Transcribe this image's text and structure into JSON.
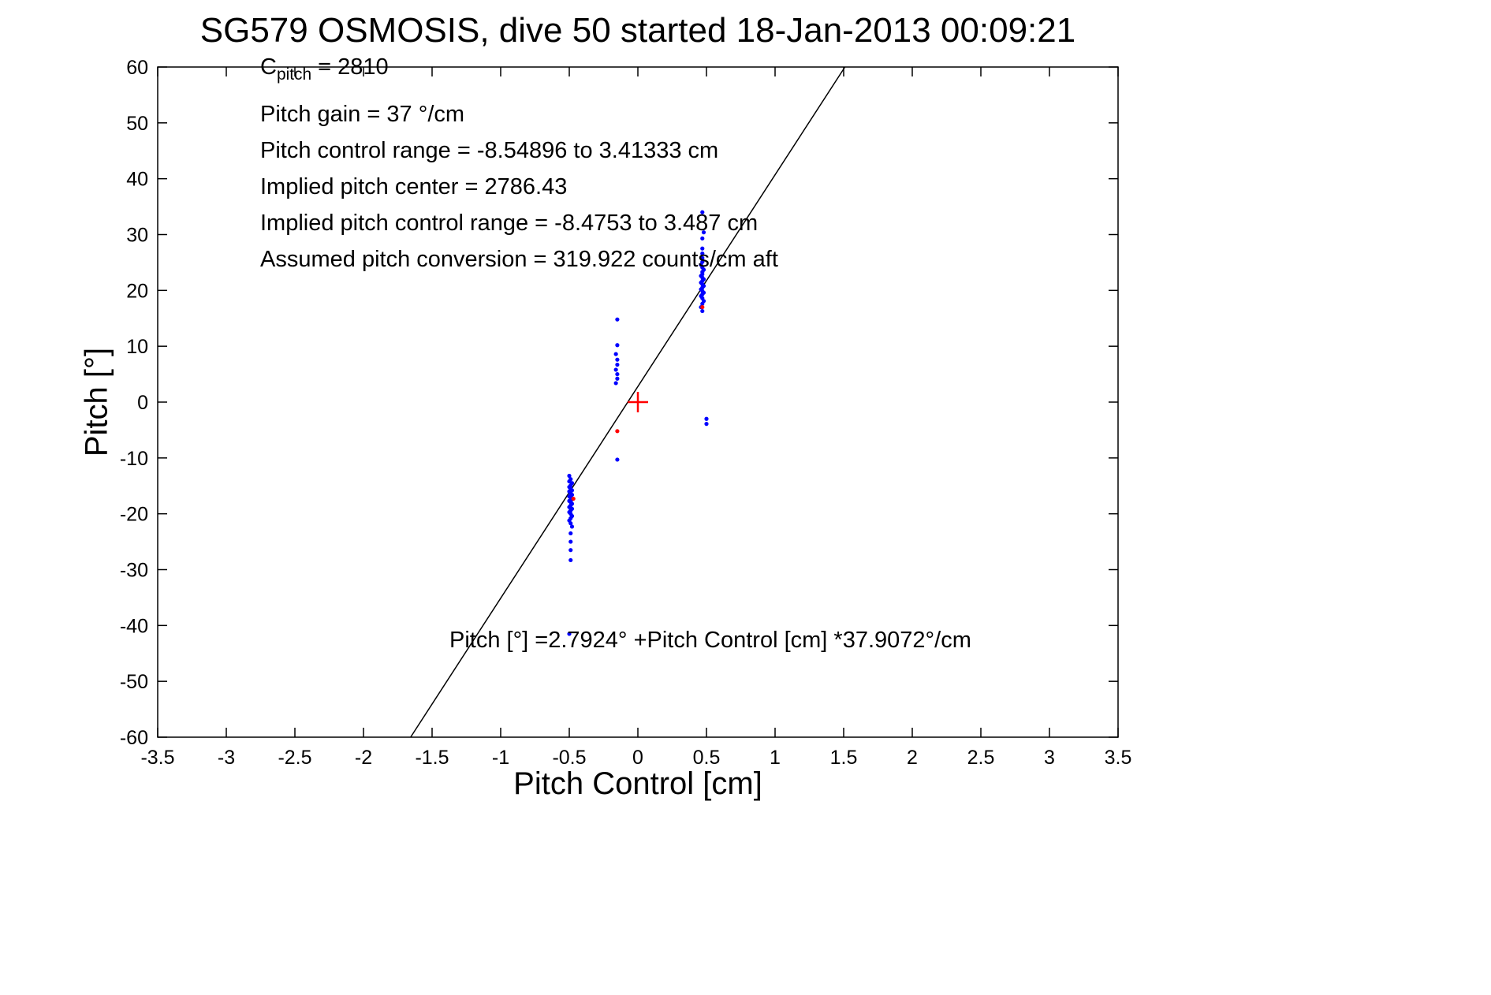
{
  "title": "SG579 OSMOSIS, dive 50 started 18-Jan-2013 00:09:21",
  "annotations": {
    "cpitch_base": "C",
    "cpitch_sub": "pitch",
    "cpitch_value": " = 2810",
    "lines": [
      "Pitch gain = 37 °/cm",
      "Pitch control range = -8.54896 to 3.41333 cm",
      "Implied pitch center = 2786.43",
      "Implied pitch control range = -8.4753 to 3.487 cm",
      "Assumed pitch conversion = 319.922 counts/cm aft"
    ],
    "equation": "Pitch [°] =2.7924° +Pitch Control [cm] *37.9072°/cm"
  },
  "chart_data": {
    "type": "scatter",
    "title": "SG579 OSMOSIS, dive 50 started 18-Jan-2013 00:09:21",
    "xlabel": "Pitch Control [cm]",
    "ylabel": "Pitch [°]",
    "xlim": [
      -3.5,
      3.5
    ],
    "ylim": [
      -60,
      60
    ],
    "grid": false,
    "legend": "none",
    "xticks": [
      {
        "v": -3.5,
        "label": "-3.5"
      },
      {
        "v": -3,
        "label": "-3"
      },
      {
        "v": -2.5,
        "label": "-2.5"
      },
      {
        "v": -2,
        "label": "-2"
      },
      {
        "v": -1.5,
        "label": "-1.5"
      },
      {
        "v": -1,
        "label": "-1"
      },
      {
        "v": -0.5,
        "label": "-0.5"
      },
      {
        "v": 0,
        "label": "0"
      },
      {
        "v": 0.5,
        "label": "0.5"
      },
      {
        "v": 1,
        "label": "1"
      },
      {
        "v": 1.5,
        "label": "1.5"
      },
      {
        "v": 2,
        "label": "2"
      },
      {
        "v": 2.5,
        "label": "2.5"
      },
      {
        "v": 3,
        "label": "3"
      },
      {
        "v": 3.5,
        "label": "3.5"
      }
    ],
    "yticks": [
      {
        "v": -60,
        "label": "-60"
      },
      {
        "v": -50,
        "label": "-50"
      },
      {
        "v": -40,
        "label": "-40"
      },
      {
        "v": -30,
        "label": "-30"
      },
      {
        "v": -20,
        "label": "-20"
      },
      {
        "v": -10,
        "label": "-10"
      },
      {
        "v": 0,
        "label": "0"
      },
      {
        "v": 10,
        "label": "10"
      },
      {
        "v": 20,
        "label": "20"
      },
      {
        "v": 30,
        "label": "30"
      },
      {
        "v": 40,
        "label": "40"
      },
      {
        "v": 50,
        "label": "50"
      },
      {
        "v": 60,
        "label": "60"
      }
    ],
    "fit_line": {
      "intercept": 2.7924,
      "slope": 37.9072,
      "color": "#000000"
    },
    "series": [
      {
        "name": "observed-pitch",
        "marker": "dot",
        "color": "#0000ff",
        "points": [
          [
            -0.5,
            -13.2
          ],
          [
            -0.49,
            -13.8
          ],
          [
            -0.5,
            -14.2
          ],
          [
            -0.48,
            -14.5
          ],
          [
            -0.49,
            -14.9
          ],
          [
            -0.5,
            -15.2
          ],
          [
            -0.49,
            -15.5
          ],
          [
            -0.48,
            -15.8
          ],
          [
            -0.5,
            -16.0
          ],
          [
            -0.49,
            -16.3
          ],
          [
            -0.48,
            -16.6
          ],
          [
            -0.5,
            -16.9
          ],
          [
            -0.49,
            -17.1
          ],
          [
            -0.48,
            -17.4
          ],
          [
            -0.5,
            -17.7
          ],
          [
            -0.49,
            -17.9
          ],
          [
            -0.48,
            -18.2
          ],
          [
            -0.49,
            -18.5
          ],
          [
            -0.5,
            -18.8
          ],
          [
            -0.48,
            -19.1
          ],
          [
            -0.49,
            -19.4
          ],
          [
            -0.5,
            -19.7
          ],
          [
            -0.49,
            -20.0
          ],
          [
            -0.48,
            -20.4
          ],
          [
            -0.49,
            -20.8
          ],
          [
            -0.5,
            -21.2
          ],
          [
            -0.49,
            -21.7
          ],
          [
            -0.48,
            -22.3
          ],
          [
            -0.49,
            -23.5
          ],
          [
            -0.49,
            -25.0
          ],
          [
            -0.49,
            -26.5
          ],
          [
            -0.49,
            -28.3
          ],
          [
            -0.5,
            -41.5
          ],
          [
            0.47,
            16.3
          ],
          [
            0.46,
            17.0
          ],
          [
            0.47,
            17.6
          ],
          [
            0.48,
            18.1
          ],
          [
            0.47,
            18.6
          ],
          [
            0.46,
            19.0
          ],
          [
            0.47,
            19.3
          ],
          [
            0.48,
            19.6
          ],
          [
            0.47,
            19.9
          ],
          [
            0.46,
            20.2
          ],
          [
            0.47,
            20.5
          ],
          [
            0.48,
            20.8
          ],
          [
            0.47,
            21.1
          ],
          [
            0.46,
            21.4
          ],
          [
            0.47,
            21.7
          ],
          [
            0.48,
            22.0
          ],
          [
            0.47,
            22.3
          ],
          [
            0.46,
            22.6
          ],
          [
            0.47,
            22.9
          ],
          [
            0.47,
            23.3
          ],
          [
            0.48,
            23.7
          ],
          [
            0.47,
            24.1
          ],
          [
            0.46,
            24.6
          ],
          [
            0.47,
            25.1
          ],
          [
            0.47,
            25.8
          ],
          [
            0.47,
            26.6
          ],
          [
            0.47,
            27.5
          ],
          [
            0.47,
            29.3
          ],
          [
            0.48,
            30.4
          ],
          [
            0.47,
            34.0
          ],
          [
            -0.15,
            14.8
          ],
          [
            -0.15,
            10.2
          ],
          [
            -0.16,
            8.6
          ],
          [
            -0.15,
            7.6
          ],
          [
            -0.15,
            6.7
          ],
          [
            -0.16,
            5.8
          ],
          [
            -0.15,
            5.0
          ],
          [
            -0.15,
            4.2
          ],
          [
            -0.16,
            3.4
          ],
          [
            -0.15,
            -10.3
          ],
          [
            0.5,
            -3.0
          ],
          [
            0.5,
            -3.9
          ]
        ]
      },
      {
        "name": "implied-pitch",
        "marker": "dot",
        "color": "#ff0000",
        "points": [
          [
            -0.47,
            -17.3
          ],
          [
            0.47,
            17.0
          ],
          [
            -0.15,
            -5.2
          ]
        ]
      },
      {
        "name": "pitch-center-marker",
        "marker": "plus",
        "color": "#ff0000",
        "points": [
          [
            0,
            0
          ]
        ]
      }
    ]
  },
  "colors": {
    "axis": "#000000",
    "observed": "#0000ff",
    "highlight": "#ff0000",
    "fit": "#000000"
  }
}
